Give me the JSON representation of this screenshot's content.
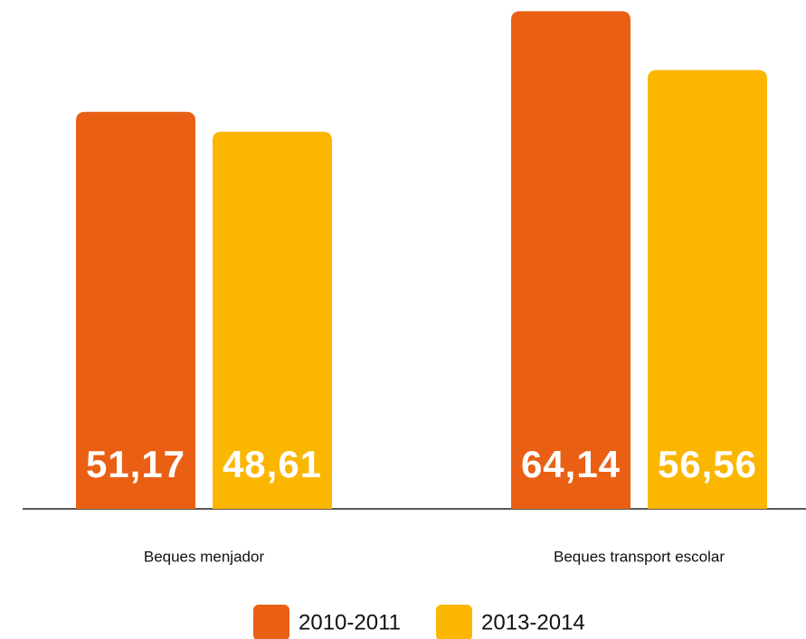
{
  "chart_data": {
    "type": "bar",
    "categories": [
      "Beques menjador",
      "Beques transport escolar"
    ],
    "series": [
      {
        "name": "2010-2011",
        "color": "#e96014",
        "values": [
          51.17,
          64.14
        ],
        "value_labels": [
          "51,17",
          "64,14"
        ]
      },
      {
        "name": "2013-2014",
        "color": "#fbb600",
        "values": [
          48.61,
          56.56
        ],
        "value_labels": [
          "48,61",
          "56,56"
        ]
      }
    ],
    "ylim": [
      0,
      65
    ]
  }
}
